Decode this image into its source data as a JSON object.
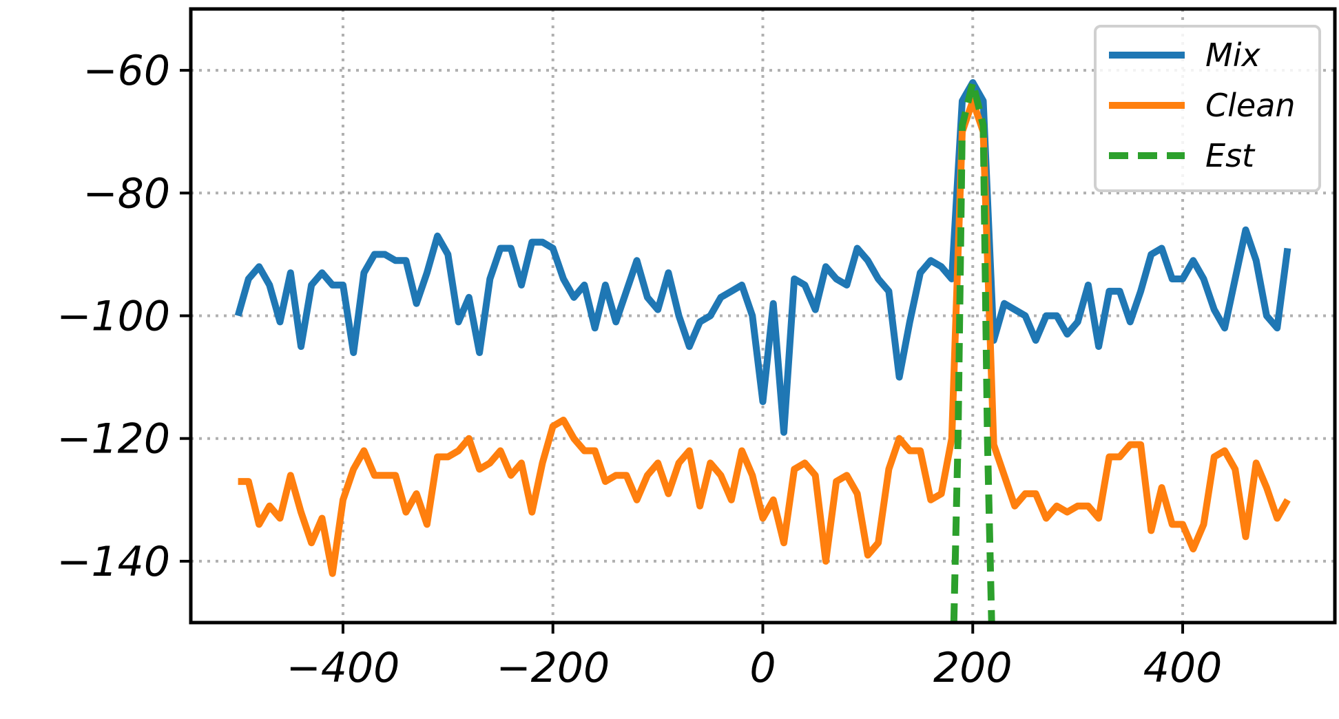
{
  "chart_data": {
    "type": "line",
    "title": "",
    "xlabel": "",
    "ylabel": "",
    "xlim": [
      -545,
      545
    ],
    "ylim": [
      -150,
      -50
    ],
    "x_ticks": [
      -400,
      -200,
      0,
      200,
      400
    ],
    "y_ticks": [
      -60,
      -80,
      -100,
      -120,
      -140
    ],
    "grid": true,
    "legend_position": "top-right",
    "series": [
      {
        "name": "Mix",
        "color": "#1f77b4",
        "style": "solid",
        "points": [
          [
            -500,
            -100
          ],
          [
            -490,
            -94
          ],
          [
            -480,
            -92
          ],
          [
            -470,
            -95
          ],
          [
            -460,
            -101
          ],
          [
            -450,
            -93
          ],
          [
            -440,
            -105
          ],
          [
            -430,
            -95
          ],
          [
            -420,
            -93
          ],
          [
            -410,
            -95
          ],
          [
            -400,
            -95
          ],
          [
            -390,
            -106
          ],
          [
            -380,
            -93
          ],
          [
            -370,
            -90
          ],
          [
            -360,
            -90
          ],
          [
            -350,
            -91
          ],
          [
            -340,
            -91
          ],
          [
            -330,
            -98
          ],
          [
            -320,
            -93
          ],
          [
            -310,
            -87
          ],
          [
            -300,
            -90
          ],
          [
            -290,
            -101
          ],
          [
            -280,
            -97
          ],
          [
            -270,
            -106
          ],
          [
            -260,
            -94
          ],
          [
            -250,
            -89
          ],
          [
            -240,
            -89
          ],
          [
            -230,
            -95
          ],
          [
            -220,
            -88
          ],
          [
            -210,
            -88
          ],
          [
            -200,
            -89
          ],
          [
            -190,
            -94
          ],
          [
            -180,
            -97
          ],
          [
            -170,
            -95
          ],
          [
            -160,
            -102
          ],
          [
            -150,
            -95
          ],
          [
            -140,
            -101
          ],
          [
            -130,
            -96
          ],
          [
            -120,
            -91
          ],
          [
            -110,
            -97
          ],
          [
            -100,
            -99
          ],
          [
            -90,
            -93
          ],
          [
            -80,
            -100
          ],
          [
            -70,
            -105
          ],
          [
            -60,
            -101
          ],
          [
            -50,
            -100
          ],
          [
            -40,
            -97
          ],
          [
            -30,
            -96
          ],
          [
            -20,
            -95
          ],
          [
            -10,
            -100
          ],
          [
            0,
            -114
          ],
          [
            10,
            -98
          ],
          [
            20,
            -119
          ],
          [
            30,
            -94
          ],
          [
            40,
            -95
          ],
          [
            50,
            -99
          ],
          [
            60,
            -92
          ],
          [
            70,
            -94
          ],
          [
            80,
            -95
          ],
          [
            90,
            -89
          ],
          [
            100,
            -91
          ],
          [
            110,
            -94
          ],
          [
            120,
            -96
          ],
          [
            130,
            -110
          ],
          [
            140,
            -101
          ],
          [
            150,
            -93
          ],
          [
            160,
            -91
          ],
          [
            170,
            -92
          ],
          [
            180,
            -94
          ],
          [
            190,
            -65
          ],
          [
            200,
            -62
          ],
          [
            210,
            -65
          ],
          [
            220,
            -104
          ],
          [
            230,
            -98
          ],
          [
            240,
            -99
          ],
          [
            250,
            -100
          ],
          [
            260,
            -104
          ],
          [
            270,
            -100
          ],
          [
            280,
            -100
          ],
          [
            290,
            -103
          ],
          [
            300,
            -101
          ],
          [
            310,
            -95
          ],
          [
            320,
            -105
          ],
          [
            330,
            -96
          ],
          [
            340,
            -96
          ],
          [
            350,
            -101
          ],
          [
            360,
            -96
          ],
          [
            370,
            -90
          ],
          [
            380,
            -89
          ],
          [
            390,
            -94
          ],
          [
            400,
            -94
          ],
          [
            410,
            -91
          ],
          [
            420,
            -94
          ],
          [
            430,
            -99
          ],
          [
            440,
            -102
          ],
          [
            450,
            -94
          ],
          [
            460,
            -86
          ],
          [
            470,
            -91
          ],
          [
            480,
            -100
          ],
          [
            490,
            -102
          ],
          [
            500,
            -89
          ]
        ]
      },
      {
        "name": "Clean",
        "color": "#ff7f0e",
        "style": "solid",
        "points": [
          [
            -500,
            -127
          ],
          [
            -490,
            -127
          ],
          [
            -480,
            -134
          ],
          [
            -470,
            -131
          ],
          [
            -460,
            -133
          ],
          [
            -450,
            -126
          ],
          [
            -440,
            -132
          ],
          [
            -430,
            -137
          ],
          [
            -420,
            -133
          ],
          [
            -410,
            -142
          ],
          [
            -400,
            -130
          ],
          [
            -390,
            -125
          ],
          [
            -380,
            -122
          ],
          [
            -370,
            -126
          ],
          [
            -360,
            -126
          ],
          [
            -350,
            -126
          ],
          [
            -340,
            -132
          ],
          [
            -330,
            -129
          ],
          [
            -320,
            -134
          ],
          [
            -310,
            -123
          ],
          [
            -300,
            -123
          ],
          [
            -290,
            -122
          ],
          [
            -280,
            -120
          ],
          [
            -270,
            -125
          ],
          [
            -260,
            -124
          ],
          [
            -250,
            -122
          ],
          [
            -240,
            -126
          ],
          [
            -230,
            -124
          ],
          [
            -220,
            -132
          ],
          [
            -210,
            -124
          ],
          [
            -200,
            -118
          ],
          [
            -190,
            -117
          ],
          [
            -180,
            -120
          ],
          [
            -170,
            -122
          ],
          [
            -160,
            -122
          ],
          [
            -150,
            -127
          ],
          [
            -140,
            -126
          ],
          [
            -130,
            -126
          ],
          [
            -120,
            -130
          ],
          [
            -110,
            -126
          ],
          [
            -100,
            -124
          ],
          [
            -90,
            -129
          ],
          [
            -80,
            -124
          ],
          [
            -70,
            -122
          ],
          [
            -60,
            -131
          ],
          [
            -50,
            -124
          ],
          [
            -40,
            -126
          ],
          [
            -30,
            -130
          ],
          [
            -20,
            -122
          ],
          [
            -10,
            -126
          ],
          [
            0,
            -133
          ],
          [
            10,
            -130
          ],
          [
            20,
            -137
          ],
          [
            30,
            -125
          ],
          [
            40,
            -124
          ],
          [
            50,
            -126
          ],
          [
            60,
            -140
          ],
          [
            70,
            -127
          ],
          [
            80,
            -126
          ],
          [
            90,
            -129
          ],
          [
            100,
            -139
          ],
          [
            110,
            -137
          ],
          [
            120,
            -125
          ],
          [
            130,
            -120
          ],
          [
            140,
            -122
          ],
          [
            150,
            -122
          ],
          [
            160,
            -130
          ],
          [
            170,
            -129
          ],
          [
            180,
            -120
          ],
          [
            190,
            -70
          ],
          [
            200,
            -65
          ],
          [
            210,
            -70
          ],
          [
            220,
            -121
          ],
          [
            230,
            -126
          ],
          [
            240,
            -131
          ],
          [
            250,
            -129
          ],
          [
            260,
            -129
          ],
          [
            270,
            -133
          ],
          [
            280,
            -131
          ],
          [
            290,
            -132
          ],
          [
            300,
            -131
          ],
          [
            310,
            -131
          ],
          [
            320,
            -133
          ],
          [
            330,
            -123
          ],
          [
            340,
            -123
          ],
          [
            350,
            -121
          ],
          [
            360,
            -121
          ],
          [
            370,
            -135
          ],
          [
            380,
            -128
          ],
          [
            390,
            -134
          ],
          [
            400,
            -134
          ],
          [
            410,
            -138
          ],
          [
            420,
            -134
          ],
          [
            430,
            -123
          ],
          [
            440,
            -122
          ],
          [
            450,
            -125
          ],
          [
            460,
            -136
          ],
          [
            470,
            -124
          ],
          [
            480,
            -128
          ],
          [
            490,
            -133
          ],
          [
            500,
            -130
          ]
        ]
      },
      {
        "name": "Est",
        "color": "#2ca02c",
        "style": "dashed",
        "points": [
          [
            182,
            -150
          ],
          [
            186,
            -120
          ],
          [
            190,
            -69
          ],
          [
            200,
            -62
          ],
          [
            210,
            -69
          ],
          [
            214,
            -120
          ],
          [
            218,
            -150
          ]
        ]
      }
    ]
  }
}
